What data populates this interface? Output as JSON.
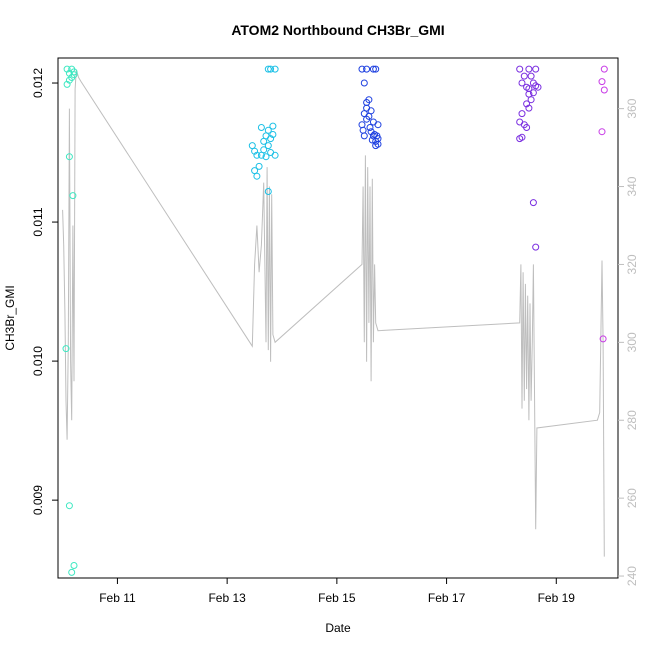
{
  "chart_data": {
    "type": "scatter",
    "title": "ATOM2 Northbound CH3Br_GMI",
    "xlabel": "Date",
    "ylabel": "CH3Br_GMI",
    "xlim": [
      "2017-02-09T22:00",
      "2017-02-20T03:00"
    ],
    "ylim": [
      0.00844,
      0.01218
    ],
    "y2lim": [
      239.5,
      373
    ],
    "x_ticks": [
      {
        "value": "2017-02-11T00:00",
        "label": "Feb 11"
      },
      {
        "value": "2017-02-13T00:00",
        "label": "Feb 13"
      },
      {
        "value": "2017-02-15T00:00",
        "label": "Feb 15"
      },
      {
        "value": "2017-02-17T00:00",
        "label": "Feb 17"
      },
      {
        "value": "2017-02-19T00:00",
        "label": "Feb 19"
      }
    ],
    "y_ticks": [
      {
        "value": 0.009,
        "label": "0.009"
      },
      {
        "value": 0.01,
        "label": "0.010"
      },
      {
        "value": 0.011,
        "label": "0.011"
      },
      {
        "value": 0.012,
        "label": "0.012"
      }
    ],
    "y2_ticks": [
      {
        "value": 240,
        "label": "240"
      },
      {
        "value": 260,
        "label": "260"
      },
      {
        "value": 280,
        "label": "280"
      },
      {
        "value": 300,
        "label": "300"
      },
      {
        "value": 320,
        "label": "320"
      },
      {
        "value": 340,
        "label": "340"
      },
      {
        "value": 360,
        "label": "360"
      }
    ],
    "colors": {
      "axis": "#000000",
      "line": "#bebebe",
      "right_axis": "#bebebe"
    },
    "series": [
      {
        "type": "scatter",
        "axis": "left",
        "color_scale": "turquoise-to-magenta by time",
        "points": [
          {
            "x": "2017-02-10T02:00",
            "y": 0.0121,
            "color": "#3ee8c2"
          },
          {
            "x": "2017-02-10T03:00",
            "y": 0.01207,
            "color": "#3ee8c2"
          },
          {
            "x": "2017-02-10T02:00",
            "y": 0.01199,
            "color": "#3ee8c2"
          },
          {
            "x": "2017-02-10T03:00",
            "y": 0.01202,
            "color": "#3ee8c2"
          },
          {
            "x": "2017-02-10T04:00",
            "y": 0.0121,
            "color": "#3ee8c2"
          },
          {
            "x": "2017-02-10T04:00",
            "y": 0.01204,
            "color": "#3ee8c2"
          },
          {
            "x": "2017-02-10T05:00",
            "y": 0.01208,
            "color": "#3ee8c2"
          },
          {
            "x": "2017-02-10T05:00",
            "y": 0.01206,
            "color": "#3ee8c2"
          },
          {
            "x": "2017-02-10T03:00",
            "y": 0.01147,
            "color": "#3ee8c2"
          },
          {
            "x": "2017-02-10T04:30",
            "y": 0.01119,
            "color": "#3ee8c2"
          },
          {
            "x": "2017-02-10T01:30",
            "y": 0.01009,
            "color": "#3ee8c2"
          },
          {
            "x": "2017-02-10T03:00",
            "y": 0.00896,
            "color": "#3ee8c2"
          },
          {
            "x": "2017-02-10T05:00",
            "y": 0.00853,
            "color": "#3ee8c2"
          },
          {
            "x": "2017-02-10T04:00",
            "y": 0.00848,
            "color": "#3ee8c2"
          },
          {
            "x": "2017-02-13T11:00",
            "y": 0.01155,
            "color": "#1cc0e6"
          },
          {
            "x": "2017-02-13T12:00",
            "y": 0.01151,
            "color": "#1cc0e6"
          },
          {
            "x": "2017-02-13T13:00",
            "y": 0.01148,
            "color": "#1cc0e6"
          },
          {
            "x": "2017-02-13T14:00",
            "y": 0.0114,
            "color": "#1cc0e6"
          },
          {
            "x": "2017-02-13T12:00",
            "y": 0.01137,
            "color": "#1cc0e6"
          },
          {
            "x": "2017-02-13T13:00",
            "y": 0.01133,
            "color": "#1cc0e6"
          },
          {
            "x": "2017-02-13T15:00",
            "y": 0.01168,
            "color": "#1cc0e6"
          },
          {
            "x": "2017-02-13T16:00",
            "y": 0.01158,
            "color": "#1cc0e6"
          },
          {
            "x": "2017-02-13T17:00",
            "y": 0.01162,
            "color": "#1cc0e6"
          },
          {
            "x": "2017-02-13T18:00",
            "y": 0.01166,
            "color": "#1cc0e6"
          },
          {
            "x": "2017-02-13T16:00",
            "y": 0.01152,
            "color": "#1cc0e6"
          },
          {
            "x": "2017-02-13T17:00",
            "y": 0.01147,
            "color": "#1cc0e6"
          },
          {
            "x": "2017-02-13T18:00",
            "y": 0.01155,
            "color": "#1cc0e6"
          },
          {
            "x": "2017-02-13T19:00",
            "y": 0.0116,
            "color": "#1cc0e6"
          },
          {
            "x": "2017-02-13T20:00",
            "y": 0.01169,
            "color": "#1cc0e6"
          },
          {
            "x": "2017-02-13T20:00",
            "y": 0.01163,
            "color": "#1cc0e6"
          },
          {
            "x": "2017-02-13T19:00",
            "y": 0.0115,
            "color": "#1cc0e6"
          },
          {
            "x": "2017-02-13T21:00",
            "y": 0.01148,
            "color": "#1cc0e6"
          },
          {
            "x": "2017-02-13T15:00",
            "y": 0.01148,
            "color": "#1cc0e6"
          },
          {
            "x": "2017-02-13T18:00",
            "y": 0.01122,
            "color": "#1cc0e6"
          },
          {
            "x": "2017-02-13T18:00",
            "y": 0.0121,
            "color": "#1cc0e6"
          },
          {
            "x": "2017-02-13T19:00",
            "y": 0.0121,
            "color": "#1cc0e6"
          },
          {
            "x": "2017-02-13T21:00",
            "y": 0.0121,
            "color": "#1cc0e6"
          },
          {
            "x": "2017-02-15T11:00",
            "y": 0.0121,
            "color": "#1e40e0"
          },
          {
            "x": "2017-02-15T13:00",
            "y": 0.0121,
            "color": "#1e40e0"
          },
          {
            "x": "2017-02-15T16:00",
            "y": 0.0121,
            "color": "#1e40e0"
          },
          {
            "x": "2017-02-15T17:00",
            "y": 0.0121,
            "color": "#1e40e0"
          },
          {
            "x": "2017-02-15T12:00",
            "y": 0.012,
            "color": "#1e40e0"
          },
          {
            "x": "2017-02-15T11:00",
            "y": 0.0117,
            "color": "#1e40e0"
          },
          {
            "x": "2017-02-15T11:30",
            "y": 0.01166,
            "color": "#1e40e0"
          },
          {
            "x": "2017-02-15T12:00",
            "y": 0.01162,
            "color": "#1e40e0"
          },
          {
            "x": "2017-02-15T12:00",
            "y": 0.01178,
            "color": "#1e40e0"
          },
          {
            "x": "2017-02-15T13:00",
            "y": 0.01182,
            "color": "#1e40e0"
          },
          {
            "x": "2017-02-15T13:00",
            "y": 0.01174,
            "color": "#1e40e0"
          },
          {
            "x": "2017-02-15T13:00",
            "y": 0.01186,
            "color": "#1e40e0"
          },
          {
            "x": "2017-02-15T14:00",
            "y": 0.01188,
            "color": "#1e40e0"
          },
          {
            "x": "2017-02-15T14:00",
            "y": 0.01176,
            "color": "#1e40e0"
          },
          {
            "x": "2017-02-15T14:30",
            "y": 0.01168,
            "color": "#1e40e0"
          },
          {
            "x": "2017-02-15T15:00",
            "y": 0.0118,
            "color": "#1e40e0"
          },
          {
            "x": "2017-02-15T15:00",
            "y": 0.01165,
            "color": "#1e40e0"
          },
          {
            "x": "2017-02-15T15:30",
            "y": 0.01159,
            "color": "#1e40e0"
          },
          {
            "x": "2017-02-15T16:00",
            "y": 0.01172,
            "color": "#1e40e0"
          },
          {
            "x": "2017-02-15T16:00",
            "y": 0.01162,
            "color": "#1e40e0"
          },
          {
            "x": "2017-02-15T16:30",
            "y": 0.01163,
            "color": "#1e40e0"
          },
          {
            "x": "2017-02-15T17:00",
            "y": 0.01158,
            "color": "#1e40e0"
          },
          {
            "x": "2017-02-15T17:00",
            "y": 0.01155,
            "color": "#1e40e0"
          },
          {
            "x": "2017-02-15T17:30",
            "y": 0.01162,
            "color": "#1e40e0"
          },
          {
            "x": "2017-02-15T18:00",
            "y": 0.0117,
            "color": "#1e40e0"
          },
          {
            "x": "2017-02-15T18:00",
            "y": 0.0116,
            "color": "#1e40e0"
          },
          {
            "x": "2017-02-15T18:00",
            "y": 0.01156,
            "color": "#1e40e0"
          },
          {
            "x": "2017-02-18T08:00",
            "y": 0.0121,
            "color": "#7a2ee0"
          },
          {
            "x": "2017-02-18T12:00",
            "y": 0.0121,
            "color": "#7a2ee0"
          },
          {
            "x": "2017-02-18T15:00",
            "y": 0.0121,
            "color": "#7a2ee0"
          },
          {
            "x": "2017-02-18T10:00",
            "y": 0.01205,
            "color": "#7a2ee0"
          },
          {
            "x": "2017-02-18T13:00",
            "y": 0.01205,
            "color": "#7a2ee0"
          },
          {
            "x": "2017-02-18T09:00",
            "y": 0.012,
            "color": "#7a2ee0"
          },
          {
            "x": "2017-02-18T14:00",
            "y": 0.012,
            "color": "#7a2ee0"
          },
          {
            "x": "2017-02-18T11:00",
            "y": 0.01197,
            "color": "#7a2ee0"
          },
          {
            "x": "2017-02-18T12:00",
            "y": 0.01196,
            "color": "#7a2ee0"
          },
          {
            "x": "2017-02-18T15:00",
            "y": 0.01198,
            "color": "#7a2ee0"
          },
          {
            "x": "2017-02-18T16:00",
            "y": 0.01197,
            "color": "#7a2ee0"
          },
          {
            "x": "2017-02-18T12:00",
            "y": 0.01192,
            "color": "#7a2ee0"
          },
          {
            "x": "2017-02-18T14:00",
            "y": 0.01193,
            "color": "#7a2ee0"
          },
          {
            "x": "2017-02-18T13:00",
            "y": 0.01188,
            "color": "#7a2ee0"
          },
          {
            "x": "2017-02-18T11:00",
            "y": 0.01185,
            "color": "#7a2ee0"
          },
          {
            "x": "2017-02-18T12:00",
            "y": 0.01182,
            "color": "#7a2ee0"
          },
          {
            "x": "2017-02-18T09:00",
            "y": 0.01178,
            "color": "#7a2ee0"
          },
          {
            "x": "2017-02-18T08:00",
            "y": 0.01172,
            "color": "#7a2ee0"
          },
          {
            "x": "2017-02-18T10:00",
            "y": 0.0117,
            "color": "#7a2ee0"
          },
          {
            "x": "2017-02-18T11:00",
            "y": 0.01168,
            "color": "#7a2ee0"
          },
          {
            "x": "2017-02-18T08:00",
            "y": 0.0116,
            "color": "#7a2ee0"
          },
          {
            "x": "2017-02-18T09:00",
            "y": 0.01161,
            "color": "#7a2ee0"
          },
          {
            "x": "2017-02-18T14:00",
            "y": 0.01114,
            "color": "#7a2ee0"
          },
          {
            "x": "2017-02-18T15:00",
            "y": 0.01082,
            "color": "#7a2ee0"
          },
          {
            "x": "2017-02-19T21:00",
            "y": 0.0121,
            "color": "#c83ce6"
          },
          {
            "x": "2017-02-19T20:00",
            "y": 0.01201,
            "color": "#c83ce6"
          },
          {
            "x": "2017-02-19T21:00",
            "y": 0.01195,
            "color": "#c83ce6"
          },
          {
            "x": "2017-02-19T20:00",
            "y": 0.01165,
            "color": "#c83ce6"
          },
          {
            "x": "2017-02-19T20:30",
            "y": 0.01016,
            "color": "#c83ce6"
          }
        ]
      },
      {
        "type": "line",
        "axis": "right",
        "color": "#bebebe",
        "points": [
          [
            "2017-02-10T00:00",
            334
          ],
          [
            "2017-02-10T00:30",
            325
          ],
          [
            "2017-02-10T01:00",
            308
          ],
          [
            "2017-02-10T01:30",
            285
          ],
          [
            "2017-02-10T02:00",
            275
          ],
          [
            "2017-02-10T02:30",
            300
          ],
          [
            "2017-02-10T03:00",
            360
          ],
          [
            "2017-02-10T03:30",
            295
          ],
          [
            "2017-02-10T04:00",
            280
          ],
          [
            "2017-02-10T04:30",
            330
          ],
          [
            "2017-02-10T05:00",
            290
          ],
          [
            "2017-02-10T05:30",
            365
          ],
          [
            "2017-02-10T06:00",
            370
          ],
          [
            "2017-02-10T07:00",
            368
          ],
          [
            "2017-02-10T08:00",
            367
          ],
          [
            "2017-02-13T11:00",
            299
          ],
          [
            "2017-02-13T12:00",
            320
          ],
          [
            "2017-02-13T13:00",
            330
          ],
          [
            "2017-02-13T14:00",
            318
          ],
          [
            "2017-02-13T15:00",
            325
          ],
          [
            "2017-02-13T16:00",
            341
          ],
          [
            "2017-02-13T17:00",
            300
          ],
          [
            "2017-02-13T17:30",
            345
          ],
          [
            "2017-02-13T18:00",
            298
          ],
          [
            "2017-02-13T18:30",
            340
          ],
          [
            "2017-02-13T19:00",
            295
          ],
          [
            "2017-02-13T19:30",
            338
          ],
          [
            "2017-02-13T20:00",
            302
          ],
          [
            "2017-02-13T21:00",
            300
          ],
          [
            "2017-02-15T11:00",
            320
          ],
          [
            "2017-02-15T11:30",
            340
          ],
          [
            "2017-02-15T12:00",
            300
          ],
          [
            "2017-02-15T12:30",
            348
          ],
          [
            "2017-02-15T13:00",
            295
          ],
          [
            "2017-02-15T13:30",
            345
          ],
          [
            "2017-02-15T14:00",
            305
          ],
          [
            "2017-02-15T14:30",
            340
          ],
          [
            "2017-02-15T15:00",
            290
          ],
          [
            "2017-02-15T15:30",
            342
          ],
          [
            "2017-02-15T16:00",
            300
          ],
          [
            "2017-02-15T16:30",
            320
          ],
          [
            "2017-02-15T17:00",
            305
          ],
          [
            "2017-02-15T18:00",
            303
          ],
          [
            "2017-02-18T08:00",
            305
          ],
          [
            "2017-02-18T08:30",
            320
          ],
          [
            "2017-02-18T09:00",
            283
          ],
          [
            "2017-02-18T09:30",
            318
          ],
          [
            "2017-02-18T10:00",
            285
          ],
          [
            "2017-02-18T10:30",
            315
          ],
          [
            "2017-02-18T11:00",
            288
          ],
          [
            "2017-02-18T11:30",
            312
          ],
          [
            "2017-02-18T12:00",
            280
          ],
          [
            "2017-02-18T12:30",
            310
          ],
          [
            "2017-02-18T13:00",
            285
          ],
          [
            "2017-02-18T13:30",
            300
          ],
          [
            "2017-02-18T14:00",
            320
          ],
          [
            "2017-02-18T15:00",
            252
          ],
          [
            "2017-02-18T15:30",
            278
          ],
          [
            "2017-02-19T18:00",
            280
          ],
          [
            "2017-02-19T19:00",
            282
          ],
          [
            "2017-02-19T20:00",
            321
          ],
          [
            "2017-02-19T20:30",
            300
          ],
          [
            "2017-02-19T21:00",
            245
          ]
        ]
      }
    ]
  }
}
